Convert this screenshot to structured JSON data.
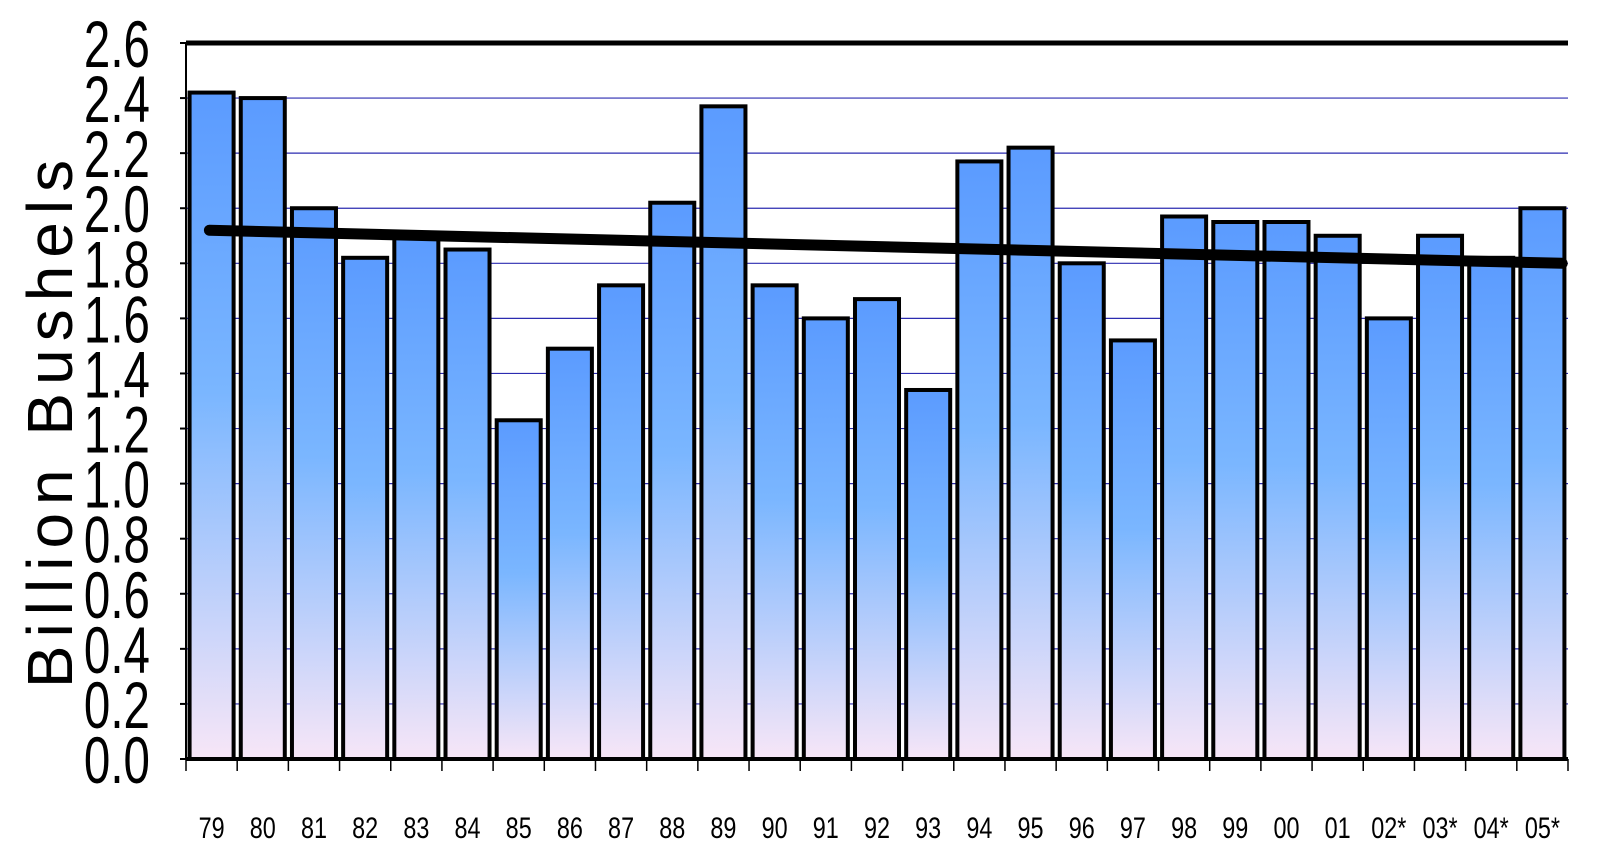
{
  "chart_data": {
    "type": "bar",
    "title": "",
    "xlabel": "",
    "ylabel": "Billion Bushels",
    "ylim": [
      0,
      2.6
    ],
    "y_ticks": [
      "0.0",
      "0.2",
      "0.4",
      "0.6",
      "0.8",
      "1.0",
      "1.2",
      "1.4",
      "1.6",
      "1.8",
      "2.0",
      "2.2",
      "2.4",
      "2.6"
    ],
    "categories": [
      "79",
      "80",
      "81",
      "82",
      "83",
      "84",
      "85",
      "86",
      "87",
      "88",
      "89",
      "90",
      "91",
      "92",
      "93",
      "94",
      "95",
      "96",
      "97",
      "98",
      "99",
      "00",
      "01",
      "02*",
      "03*",
      "04*",
      "05*"
    ],
    "values": [
      2.42,
      2.4,
      2.0,
      1.82,
      1.9,
      1.85,
      1.23,
      1.49,
      1.72,
      2.02,
      2.37,
      1.72,
      1.6,
      1.67,
      1.34,
      2.17,
      2.22,
      1.8,
      1.52,
      1.97,
      1.95,
      1.95,
      1.9,
      1.6,
      1.9,
      1.82,
      2.0
    ],
    "trendline": {
      "start": 1.92,
      "end": 1.8
    },
    "grid": true,
    "legend": "none",
    "colors": {
      "bar_top": "#5b9bff",
      "bar_mid": "#7ab6ff",
      "bar_bottom": "#f5e4f5",
      "bar_outline": "#000000",
      "gridline": "#2b2bb0",
      "trendline": "#000000"
    }
  }
}
